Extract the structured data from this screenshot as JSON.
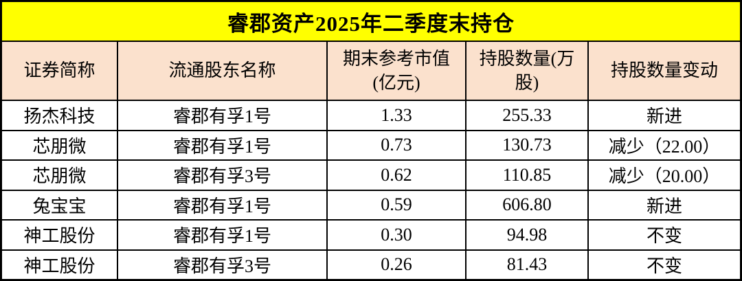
{
  "title": "睿郡资产2025年二季度末持仓",
  "colors": {
    "title_bg": "#ffff00",
    "header_bg": "#fbe1cd",
    "row_bg": "#ffffff",
    "border": "#000000",
    "text": "#000000"
  },
  "table": {
    "headers": [
      "证券简称",
      "流通股东名称",
      "期末参考市值\n(亿元)",
      "持股数量(万\n股)",
      "持股数量变动"
    ],
    "rows": [
      [
        "扬杰科技",
        "睿郡有孚1号",
        "1.33",
        "255.33",
        "新进"
      ],
      [
        "芯朋微",
        "睿郡有孚1号",
        "0.73",
        "130.73",
        "减少（22.00）"
      ],
      [
        "芯朋微",
        "睿郡有孚3号",
        "0.62",
        "110.85",
        "减少（20.00）"
      ],
      [
        "兔宝宝",
        "睿郡有孚1号",
        "0.59",
        "606.80",
        "新进"
      ],
      [
        "神工股份",
        "睿郡有孚1号",
        "0.30",
        "94.98",
        "不变"
      ],
      [
        "神工股份",
        "睿郡有孚3号",
        "0.26",
        "81.43",
        "不变"
      ]
    ]
  }
}
